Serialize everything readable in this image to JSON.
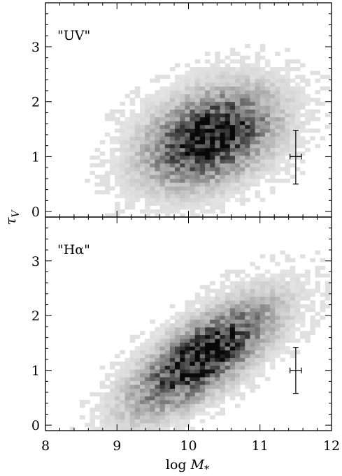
{
  "chart_data": [
    {
      "type": "heatmap",
      "panel_label": "\"UV\"",
      "xlabel": "log M*",
      "ylabel": "τ_V",
      "xlim": [
        8,
        12
      ],
      "ylim": [
        -0.1,
        3.8
      ],
      "x_ticks": [
        8,
        9,
        10,
        11,
        12
      ],
      "y_ticks": [
        0,
        1,
        2,
        3
      ],
      "grid": false,
      "density_peak": {
        "x": 10.3,
        "y": 1.35,
        "sx": 0.55,
        "sy": 0.5,
        "tilt": 0.35
      },
      "errorbar": {
        "x": 11.5,
        "y": 1.0,
        "xerr": 0.08,
        "yerr_lower": 0.5,
        "yerr_upper": 0.48
      }
    },
    {
      "type": "heatmap",
      "panel_label": "\"Hα\"",
      "xlabel": "log M*",
      "ylabel": "τ_V",
      "xlim": [
        8,
        12
      ],
      "ylim": [
        -0.1,
        3.8
      ],
      "x_ticks": [
        8,
        9,
        10,
        11,
        12
      ],
      "y_ticks": [
        0,
        1,
        2,
        3
      ],
      "grid": false,
      "density_peak": {
        "x": 10.2,
        "y": 1.25,
        "sx": 0.6,
        "sy": 0.42,
        "tilt": 0.75
      },
      "errorbar": {
        "x": 11.5,
        "y": 1.0,
        "xerr": 0.08,
        "yerr_lower": 0.42,
        "yerr_upper": 0.42
      }
    }
  ],
  "shared": {
    "xlabel_main": "log ",
    "xlabel_var": "M",
    "xlabel_sub": "*",
    "ylabel_main": "τ",
    "ylabel_sub": "V"
  }
}
